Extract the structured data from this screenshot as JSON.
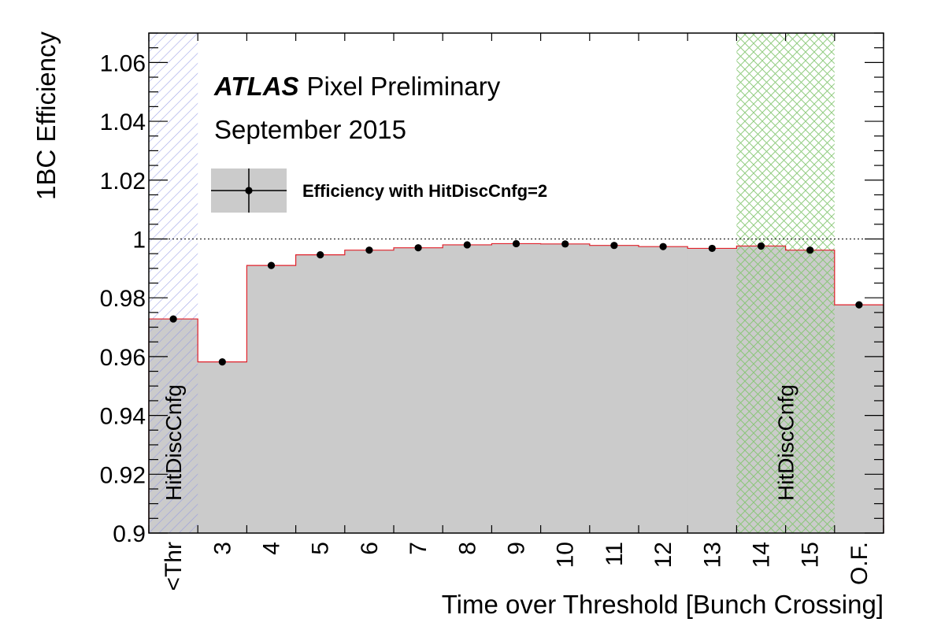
{
  "colors": {
    "fill": "#cbcbcb",
    "outline": "#e0202a",
    "threshold_hatch": "#8f95e3",
    "tot_hatch": "#7fc46c",
    "marker": "#000000"
  },
  "annotations": {
    "atlas": "ATLAS",
    "label": "Pixel Preliminary",
    "date": "September 2015",
    "region_left": "HitDiscCnfg",
    "region_right": "HitDiscCnfg"
  },
  "chart_data": {
    "type": "bar",
    "title": "",
    "xlabel": "Time over Threshold [Bunch Crossing]",
    "ylabel": "1BC Efficiency",
    "categories": [
      "<Thr",
      "3",
      "4",
      "5",
      "6",
      "7",
      "8",
      "9",
      "10",
      "11",
      "12",
      "13",
      "14",
      "15",
      "O.F."
    ],
    "series": [
      {
        "name": "Efficiency with HitDiscCnfg=2",
        "values": [
          0.9728,
          0.9582,
          0.991,
          0.9946,
          0.9962,
          0.997,
          0.998,
          0.9984,
          0.9983,
          0.9978,
          0.9974,
          0.9968,
          0.9976,
          0.9962,
          0.9776
        ]
      }
    ],
    "ylim": [
      0.9,
      1.07
    ],
    "yticks": [
      0.9,
      0.92,
      0.94,
      0.96,
      0.98,
      1,
      1.02,
      1.04,
      1.06
    ],
    "ytick_labels": [
      "0.9",
      "0.92",
      "0.94",
      "0.96",
      "0.98",
      "1",
      "1.02",
      "1.04",
      "1.06"
    ],
    "reference_line": 1,
    "hatched_regions": [
      {
        "from": "<Thr",
        "to": "<Thr",
        "style": "diagonal",
        "label": "HitDiscCnfg"
      },
      {
        "from": "14",
        "to": "15",
        "style": "cross",
        "label": "HitDiscCnfg"
      }
    ],
    "legend_position": "top-left",
    "grid": false
  }
}
